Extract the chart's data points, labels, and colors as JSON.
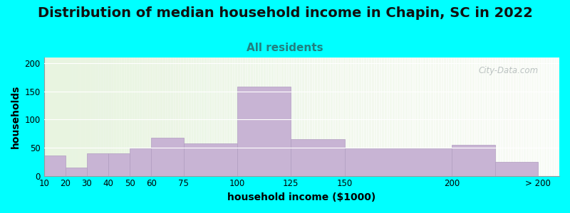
{
  "title": "Distribution of median household income in Chapin, SC in 2022",
  "subtitle": "All residents",
  "xlabel": "household income ($1000)",
  "ylabel": "households",
  "tick_labels": [
    "10",
    "20",
    "30",
    "40",
    "50",
    "60",
    "75",
    "100",
    "125",
    "150",
    "200",
    "> 200"
  ],
  "tick_positions": [
    10,
    20,
    30,
    40,
    50,
    60,
    75,
    100,
    125,
    150,
    200,
    240
  ],
  "bar_lefts": [
    10,
    20,
    30,
    40,
    50,
    60,
    75,
    100,
    125,
    150,
    200,
    220
  ],
  "bar_widths": [
    10,
    10,
    10,
    10,
    10,
    15,
    25,
    25,
    25,
    50,
    20,
    20
  ],
  "bar_values": [
    36,
    14,
    40,
    40,
    49,
    68,
    57,
    158,
    65,
    49,
    55,
    25
  ],
  "bar_color": "#c8b4d4",
  "bar_edgecolor": "#b09dc0",
  "ylim": [
    0,
    210
  ],
  "xlim": [
    10,
    250
  ],
  "yticks": [
    0,
    50,
    100,
    150,
    200
  ],
  "background_color": "#00ffff",
  "plot_bg_color": "#e8f4e0",
  "title_fontsize": 14,
  "subtitle_fontsize": 11,
  "subtitle_color": "#208080",
  "axis_label_fontsize": 10,
  "tick_fontsize": 8.5,
  "watermark": "City-Data.com",
  "watermark_color": "#b0b8b8"
}
